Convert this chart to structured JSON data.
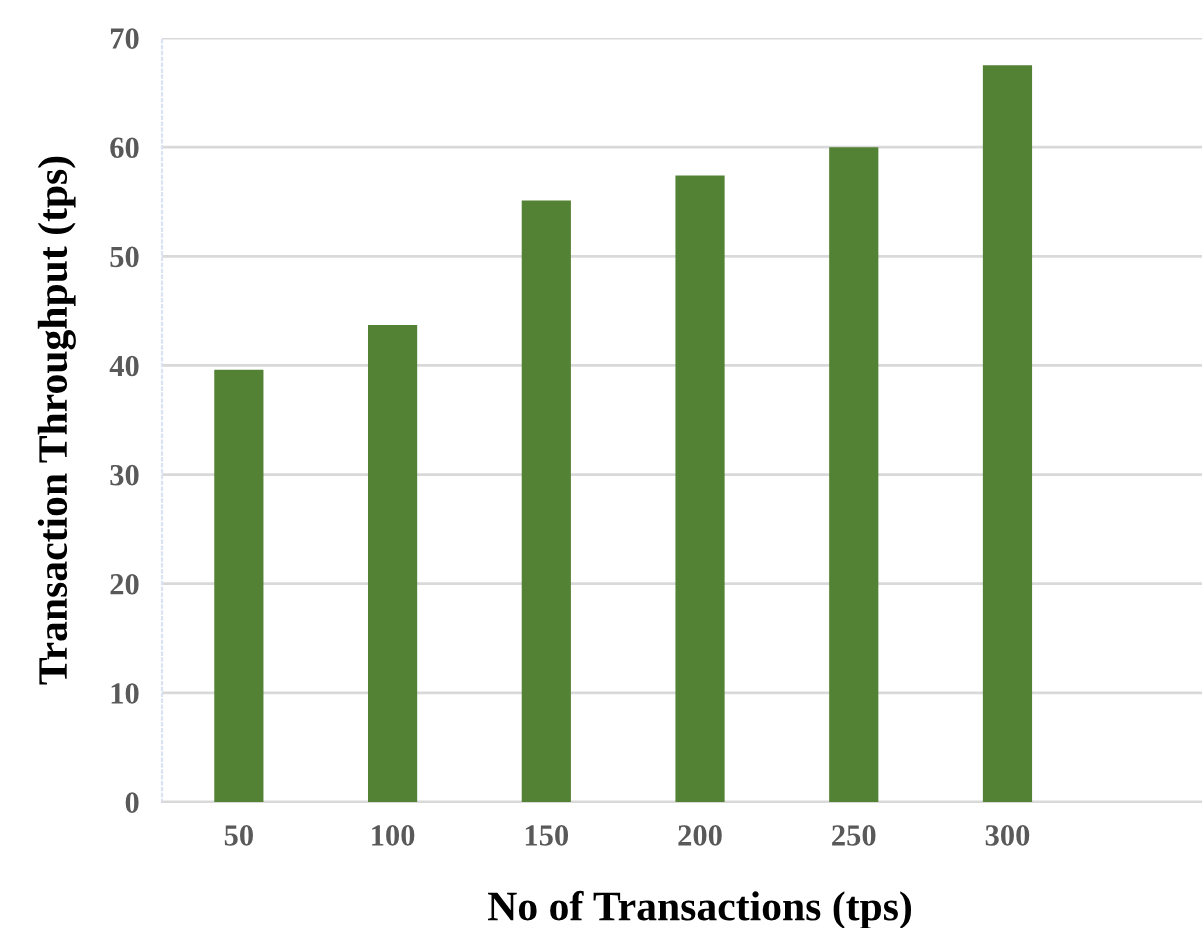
{
  "chart_data": {
    "type": "bar",
    "xlabel": "No of Transactions (tps)",
    "ylabel": "Transaction Throughput (tps)",
    "categories": [
      "50",
      "100",
      "150",
      "200",
      "250",
      "300",
      null
    ],
    "values": [
      39.6,
      43.7,
      55.1,
      57.4,
      60.0,
      67.5,
      null
    ],
    "color": "#548235",
    "ylim": [
      0,
      70
    ],
    "yticks": [
      0,
      10,
      20,
      30,
      40,
      50,
      60,
      70
    ],
    "grid": "y"
  }
}
